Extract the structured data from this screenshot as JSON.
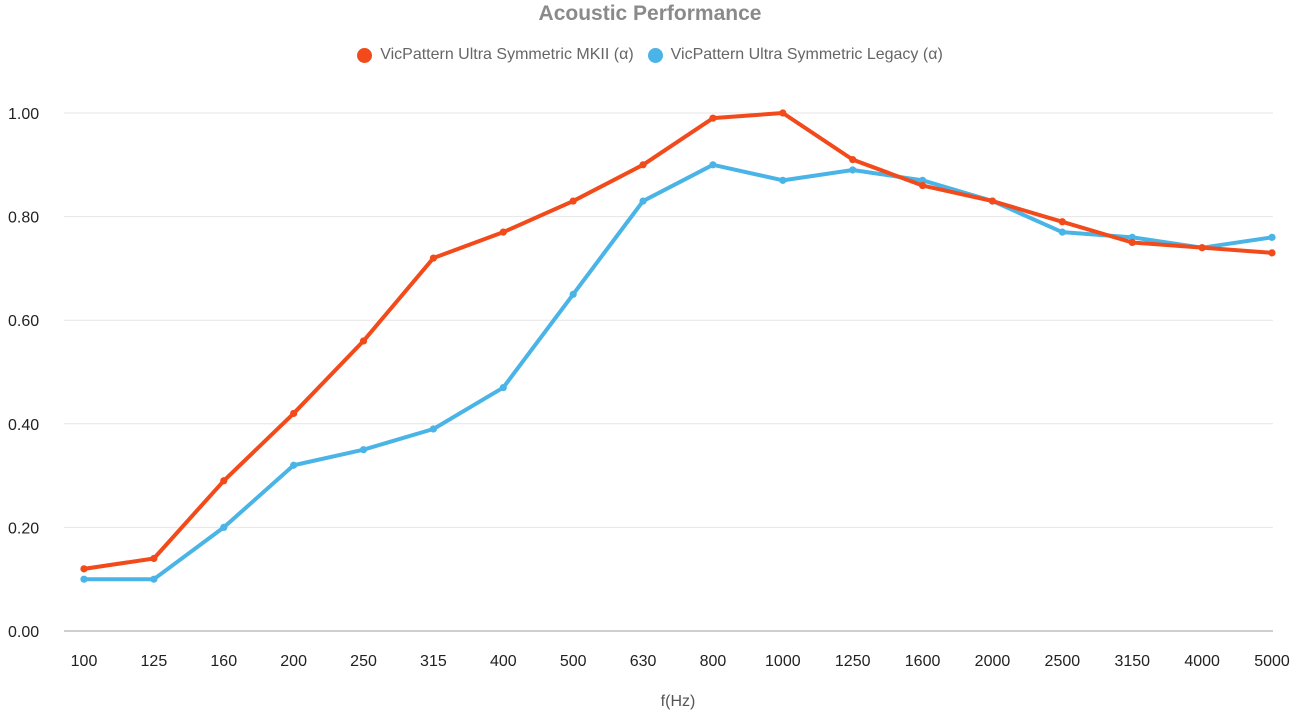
{
  "chart_data": {
    "type": "line",
    "title": "Acoustic Performance",
    "xlabel": "f(Hz)",
    "ylabel": "",
    "ylim": [
      0,
      1.0
    ],
    "yticks": [
      "0.00",
      "0.20",
      "0.40",
      "0.60",
      "0.80",
      "1.00"
    ],
    "grid": true,
    "legend_position": "top-center",
    "categories": [
      "100",
      "125",
      "160",
      "200",
      "250",
      "315",
      "400",
      "500",
      "630",
      "800",
      "1000",
      "1250",
      "1600",
      "2000",
      "2500",
      "3150",
      "4000",
      "5000"
    ],
    "series": [
      {
        "name": "VicPattern Ultra Symmetric MKII (α)",
        "color": "#f24a1a",
        "values": [
          0.12,
          0.14,
          0.29,
          0.42,
          0.56,
          0.72,
          0.77,
          0.83,
          0.9,
          0.99,
          1.0,
          0.91,
          0.86,
          0.83,
          0.79,
          0.75,
          0.74,
          0.73
        ]
      },
      {
        "name": "VicPattern Ultra Symmetric Legacy (α)",
        "color": "#4ab4e6",
        "values": [
          0.1,
          0.1,
          0.2,
          0.32,
          0.35,
          0.39,
          0.47,
          0.65,
          0.83,
          0.9,
          0.87,
          0.89,
          0.87,
          0.83,
          0.77,
          0.76,
          0.74,
          0.76
        ]
      }
    ]
  }
}
